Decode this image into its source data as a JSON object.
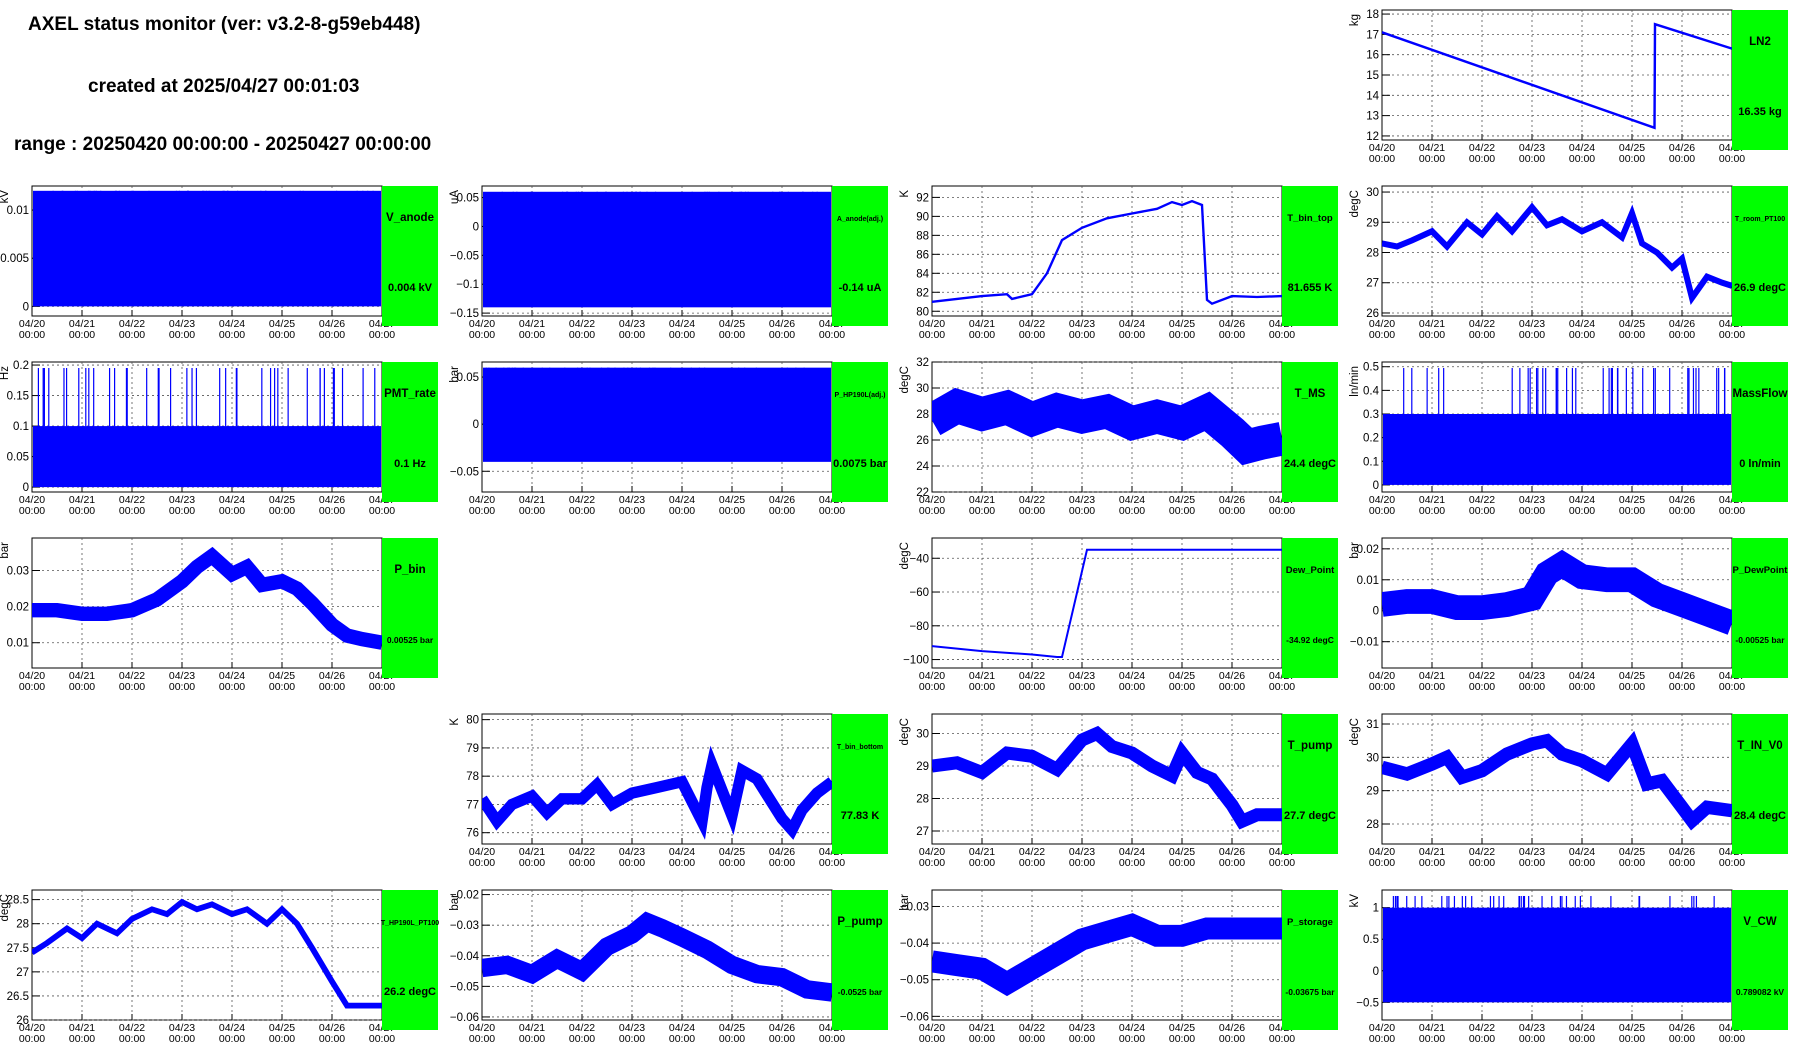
{
  "header": {
    "title": "AXEL status monitor (ver: v3.2-8-g59eb448)",
    "created": "created at 2025/04/27 00:01:03",
    "range": "range : 20250420 00:00:00 - 20250427 00:00:00"
  },
  "x_axis": {
    "tick_labels": [
      [
        "04/20",
        "00:00"
      ],
      [
        "04/21",
        "00:00"
      ],
      [
        "04/22",
        "00:00"
      ],
      [
        "04/23",
        "00:00"
      ],
      [
        "04/24",
        "00:00"
      ],
      [
        "04/25",
        "00:00"
      ],
      [
        "04/26",
        "00:00"
      ],
      [
        "04/27",
        "00:00"
      ]
    ],
    "range_days": [
      0,
      7
    ]
  },
  "colors": {
    "series": "#0000ff",
    "status_box": "#00ff00"
  },
  "chart_data": [
    {
      "id": "ln2",
      "type": "line",
      "name": "LN2",
      "status_value": "16.35 kg",
      "ylabel": "kg",
      "ylim": [
        11.8,
        18.2
      ],
      "yticks": [
        12,
        13,
        14,
        15,
        16,
        17,
        18
      ],
      "ytick_labels": [
        "12",
        "13",
        "14",
        "15",
        "16",
        "17",
        "18"
      ],
      "band": 0.12,
      "x": [
        0,
        5.45,
        5.45,
        5.46,
        7
      ],
      "y": [
        17.1,
        12.4,
        12.4,
        17.5,
        16.3
      ]
    },
    {
      "id": "v_anode",
      "type": "line",
      "name": "V_anode",
      "status_value": "0.004 kV",
      "ylabel": "kV",
      "ylim": [
        -0.001,
        0.0125
      ],
      "yticks": [
        0,
        0.005,
        0.01
      ],
      "ytick_labels": [
        "0",
        "0.005",
        "0.01"
      ],
      "x": [
        0,
        7
      ],
      "y_low": [
        0,
        0
      ],
      "y_high": [
        0.012,
        0.012
      ]
    },
    {
      "id": "a_anode",
      "type": "line",
      "name": "A_anode(adj.)",
      "status_value": "-0.14 uA",
      "ylabel": "uA",
      "ylim": [
        -0.155,
        0.07
      ],
      "yticks": [
        -0.15,
        -0.1,
        -0.05,
        0,
        0.05
      ],
      "ytick_labels": [
        "−0.15",
        "−0.1",
        "−0.05",
        "0",
        "0.05"
      ],
      "x": [
        0,
        7
      ],
      "y_low": [
        -0.14,
        -0.14
      ],
      "y_high": [
        0.06,
        0.06
      ]
    },
    {
      "id": "t_bin_top",
      "type": "line",
      "name": "T_bin_top",
      "status_value": "81.655 K",
      "ylabel": "K",
      "ylim": [
        79.5,
        93.2
      ],
      "yticks": [
        80,
        82,
        84,
        86,
        88,
        90,
        92
      ],
      "ytick_labels": [
        "80",
        "82",
        "84",
        "86",
        "88",
        "90",
        "92"
      ],
      "band": 0.25,
      "x": [
        0,
        0.5,
        1,
        1.5,
        1.6,
        2,
        2.3,
        2.6,
        3,
        3.5,
        4,
        4.5,
        4.8,
        5,
        5.2,
        5.4,
        5.5,
        5.6,
        6,
        6.5,
        7
      ],
      "y": [
        81,
        81.3,
        81.6,
        81.8,
        81.3,
        81.8,
        84,
        87.5,
        88.8,
        89.8,
        90.3,
        90.8,
        91.5,
        91.2,
        91.6,
        91.2,
        81.2,
        80.8,
        81.6,
        81.5,
        81.6
      ]
    },
    {
      "id": "t_room",
      "type": "line",
      "name": "T_room_PT100",
      "status_value": "26.9 degC",
      "ylabel": "degC",
      "ylim": [
        25.9,
        30.2
      ],
      "yticks": [
        26,
        27,
        28,
        29,
        30
      ],
      "ytick_labels": [
        "26",
        "27",
        "28",
        "29",
        "30"
      ],
      "band": 0.2,
      "x": [
        0,
        0.3,
        0.6,
        1,
        1.3,
        1.7,
        2,
        2.3,
        2.6,
        3,
        3.3,
        3.6,
        4,
        4.4,
        4.8,
        5,
        5.2,
        5.5,
        5.8,
        6,
        6.2,
        6.5,
        6.8,
        7
      ],
      "y": [
        28.3,
        28.2,
        28.4,
        28.7,
        28.2,
        29,
        28.6,
        29.2,
        28.7,
        29.5,
        28.9,
        29.1,
        28.7,
        29.0,
        28.5,
        29.3,
        28.3,
        28.0,
        27.5,
        27.8,
        26.5,
        27.2,
        27.0,
        26.9
      ]
    },
    {
      "id": "pmt_rate",
      "type": "line",
      "name": "PMT_rate",
      "status_value": "0.1 Hz",
      "ylabel": "Hz",
      "ylim": [
        -0.008,
        0.205
      ],
      "yticks": [
        0,
        0.05,
        0.1,
        0.15,
        0.2
      ],
      "ytick_labels": [
        "0",
        "0.05",
        "0.1",
        "0.15",
        "0.2"
      ],
      "x": [
        0,
        7
      ],
      "y_low": [
        0,
        0
      ],
      "y_high": [
        0.1,
        0.1
      ]
    },
    {
      "id": "p_hp190l",
      "type": "line",
      "name": "P_HP190L(adj.)",
      "status_value": "0.0075 bar",
      "ylabel": "bar",
      "ylim": [
        -0.072,
        0.066
      ],
      "yticks": [
        -0.05,
        0,
        0.05
      ],
      "ytick_labels": [
        "−0.05",
        "0",
        "0.05"
      ],
      "x": [
        0,
        7
      ],
      "y_low": [
        -0.04,
        -0.04
      ],
      "y_high": [
        0.06,
        0.06
      ]
    },
    {
      "id": "t_ms",
      "type": "line",
      "name": "T_MS",
      "status_value": "24.4 degC",
      "ylabel": "degC",
      "ylim": [
        22,
        32
      ],
      "yticks": [
        22,
        24,
        26,
        28,
        30,
        32
      ],
      "ytick_labels": [
        "22",
        "24",
        "26",
        "28",
        "30",
        "32"
      ],
      "band": 2.6,
      "x": [
        0,
        0.5,
        1,
        1.5,
        2,
        2.5,
        3,
        3.5,
        4,
        4.5,
        5,
        5.5,
        6,
        6.3,
        6.6,
        7
      ],
      "y": [
        27.5,
        28.6,
        28,
        28.5,
        27.6,
        28.3,
        27.8,
        28.2,
        27.3,
        27.8,
        27.3,
        28.2,
        26.6,
        25.5,
        25.8,
        26.1
      ]
    },
    {
      "id": "massflow",
      "type": "line",
      "name": "MassFlow",
      "status_value": "0 ln/min",
      "ylabel": "ln/min",
      "ylim": [
        -0.03,
        0.52
      ],
      "yticks": [
        0,
        0.1,
        0.2,
        0.3,
        0.4,
        0.5
      ],
      "ytick_labels": [
        "0",
        "0.1",
        "0.2",
        "0.3",
        "0.4",
        "0.5"
      ],
      "x": [
        0,
        7
      ],
      "y_low": [
        0,
        0
      ],
      "y_high": [
        0.3,
        0.3
      ]
    },
    {
      "id": "p_bin",
      "type": "line",
      "name": "P_bin",
      "status_value": "0.00525 bar",
      "ylabel": "bar",
      "ylim": [
        0.003,
        0.039
      ],
      "yticks": [
        0.01,
        0.02,
        0.03
      ],
      "ytick_labels": [
        "0.01",
        "0.02",
        "0.03"
      ],
      "band": 0.004,
      "x": [
        0,
        0.5,
        1,
        1.5,
        2,
        2.5,
        3,
        3.3,
        3.6,
        4,
        4.3,
        4.6,
        5,
        5.3,
        5.6,
        6,
        6.3,
        6.6,
        7
      ],
      "y": [
        0.019,
        0.019,
        0.018,
        0.018,
        0.019,
        0.022,
        0.027,
        0.031,
        0.034,
        0.029,
        0.031,
        0.026,
        0.027,
        0.025,
        0.021,
        0.015,
        0.012,
        0.011,
        0.01
      ]
    },
    {
      "id": "dew_point",
      "type": "line",
      "name": "Dew_Point",
      "status_value": "-34.92 degC",
      "ylabel": "degC",
      "ylim": [
        -105,
        -28
      ],
      "yticks": [
        -100,
        -80,
        -60,
        -40
      ],
      "ytick_labels": [
        "−100",
        "−80",
        "−60",
        "−40"
      ],
      "band": 0.8,
      "x": [
        0,
        1,
        2,
        2.5,
        2.6,
        3.1,
        3.15,
        7
      ],
      "y": [
        -92,
        -95,
        -97,
        -98.5,
        -98.5,
        -35,
        -35,
        -35
      ]
    },
    {
      "id": "p_dewpoint",
      "type": "line",
      "name": "P_DewPoint",
      "status_value": "-0.00525 bar",
      "ylabel": "bar",
      "ylim": [
        -0.0185,
        0.0235
      ],
      "yticks": [
        -0.01,
        0,
        0.01,
        0.02
      ],
      "ytick_labels": [
        "−0.01",
        "0",
        "0.01",
        "0.02"
      ],
      "band": 0.008,
      "x": [
        0,
        0.5,
        1,
        1.5,
        2,
        2.5,
        3,
        3.3,
        3.6,
        4,
        4.5,
        5,
        5.5,
        6,
        6.5,
        7
      ],
      "y": [
        0.002,
        0.003,
        0.003,
        0.001,
        0.001,
        0.002,
        0.004,
        0.012,
        0.015,
        0.011,
        0.01,
        0.01,
        0.005,
        0.002,
        -0.001,
        -0.004
      ]
    },
    {
      "id": "t_bin_bottom",
      "type": "line",
      "name": "T_bin_bottom",
      "status_value": "77.83 K",
      "ylabel": "K",
      "ylim": [
        75.6,
        80.2
      ],
      "yticks": [
        76,
        77,
        78,
        79,
        80
      ],
      "ytick_labels": [
        "76",
        "77",
        "78",
        "79",
        "80"
      ],
      "band": 0.4,
      "x": [
        0,
        0.3,
        0.6,
        1,
        1.3,
        1.6,
        2,
        2.3,
        2.6,
        3,
        3.5,
        4,
        4.4,
        4.5,
        4.6,
        5,
        5.2,
        5.5,
        6,
        6.2,
        6.4,
        6.7,
        7
      ],
      "y": [
        77.2,
        76.4,
        77,
        77.3,
        76.7,
        77.2,
        77.2,
        77.7,
        77,
        77.4,
        77.6,
        77.8,
        76.4,
        77.6,
        78.4,
        76.6,
        78.2,
        77.9,
        76.5,
        76.1,
        76.8,
        77.4,
        77.8
      ]
    },
    {
      "id": "t_pump",
      "type": "line",
      "name": "T_pump",
      "status_value": "27.7 degC",
      "ylabel": "degC",
      "ylim": [
        26.6,
        30.6
      ],
      "yticks": [
        27,
        28,
        29,
        30
      ],
      "ytick_labels": [
        "27",
        "28",
        "29",
        "30"
      ],
      "band": 0.4,
      "x": [
        0,
        0.5,
        1,
        1.5,
        2,
        2.5,
        3,
        3.3,
        3.6,
        4,
        4.4,
        4.8,
        5,
        5.3,
        5.6,
        6,
        6.2,
        6.5,
        7
      ],
      "y": [
        29,
        29.1,
        28.8,
        29.4,
        29.3,
        28.9,
        29.8,
        30,
        29.6,
        29.4,
        29,
        28.7,
        29.4,
        28.8,
        28.6,
        27.8,
        27.3,
        27.5,
        27.5
      ]
    },
    {
      "id": "t_in_v0",
      "type": "line",
      "name": "T_IN_V0",
      "status_value": "28.4 degC",
      "ylabel": "degC",
      "ylim": [
        27.4,
        31.3
      ],
      "yticks": [
        28,
        29,
        30,
        31
      ],
      "ytick_labels": [
        "28",
        "29",
        "30",
        "31"
      ],
      "band": 0.4,
      "x": [
        0,
        0.5,
        1,
        1.3,
        1.6,
        2,
        2.5,
        3,
        3.3,
        3.6,
        4,
        4.5,
        5,
        5.3,
        5.6,
        6,
        6.2,
        6.5,
        7
      ],
      "y": [
        29.7,
        29.5,
        29.8,
        30,
        29.4,
        29.6,
        30.1,
        30.4,
        30.5,
        30.1,
        29.9,
        29.5,
        30.4,
        29.2,
        29.3,
        28.5,
        28.1,
        28.5,
        28.4
      ]
    },
    {
      "id": "t_hp190l",
      "type": "line",
      "name": "T_HP190L_PT100",
      "status_value": "26.2 degC",
      "ylabel": "degC",
      "ylim": [
        26,
        28.7
      ],
      "yticks": [
        26,
        26.5,
        27,
        27.5,
        28,
        28.5
      ],
      "ytick_labels": [
        "26",
        "26.5",
        "27",
        "27.5",
        "28",
        "28.5"
      ],
      "band": 0.12,
      "x": [
        0,
        0.3,
        0.7,
        1,
        1.3,
        1.7,
        2,
        2.4,
        2.7,
        3,
        3.3,
        3.6,
        4,
        4.3,
        4.7,
        5,
        5.3,
        5.6,
        6,
        6.3,
        6.6,
        7
      ],
      "y": [
        27.4,
        27.6,
        27.9,
        27.7,
        28.0,
        27.8,
        28.1,
        28.3,
        28.2,
        28.45,
        28.3,
        28.4,
        28.2,
        28.3,
        28.0,
        28.3,
        28.0,
        27.5,
        26.8,
        26.3,
        26.3,
        26.3
      ]
    },
    {
      "id": "p_pump",
      "type": "line",
      "name": "P_pump",
      "status_value": "-0.0525 bar",
      "ylabel": "bar",
      "ylim": [
        -0.061,
        -0.0185
      ],
      "yticks": [
        -0.06,
        -0.05,
        -0.04,
        -0.03,
        -0.02
      ],
      "ytick_labels": [
        "−0.06",
        "−0.05",
        "−0.04",
        "−0.03",
        "−0.02"
      ],
      "band": 0.006,
      "x": [
        0,
        0.5,
        1,
        1.5,
        2,
        2.5,
        3,
        3.3,
        3.6,
        4,
        4.5,
        5,
        5.5,
        6,
        6.5,
        7
      ],
      "y": [
        -0.044,
        -0.043,
        -0.046,
        -0.041,
        -0.045,
        -0.037,
        -0.033,
        -0.029,
        -0.031,
        -0.034,
        -0.038,
        -0.043,
        -0.046,
        -0.047,
        -0.051,
        -0.052
      ]
    },
    {
      "id": "p_storage",
      "type": "line",
      "name": "P_storage",
      "status_value": "-0.03675 bar",
      "ylabel": "bar",
      "ylim": [
        -0.061,
        -0.0255
      ],
      "yticks": [
        -0.06,
        -0.05,
        -0.04,
        -0.03
      ],
      "ytick_labels": [
        "−0.06",
        "−0.05",
        "−0.04",
        "−0.03"
      ],
      "band": 0.006,
      "x": [
        0,
        0.5,
        1,
        1.5,
        2,
        2.5,
        3,
        3.5,
        4,
        4.5,
        5,
        5.5,
        6,
        6.5,
        7
      ],
      "y": [
        -0.045,
        -0.046,
        -0.047,
        -0.051,
        -0.047,
        -0.043,
        -0.039,
        -0.037,
        -0.035,
        -0.038,
        -0.038,
        -0.036,
        -0.036,
        -0.036,
        -0.036
      ]
    },
    {
      "id": "v_cw",
      "type": "line",
      "name": "V_CW",
      "status_value": "0.789082 kV",
      "ylabel": "kV",
      "ylim": [
        -0.78,
        1.28
      ],
      "yticks": [
        -0.5,
        0,
        0.5,
        1
      ],
      "ytick_labels": [
        "−0.5",
        "0",
        "0.5",
        "1"
      ],
      "x": [
        0,
        7
      ],
      "y_low": [
        -0.5,
        -0.5
      ],
      "y_high": [
        1.0,
        1.0
      ]
    }
  ]
}
